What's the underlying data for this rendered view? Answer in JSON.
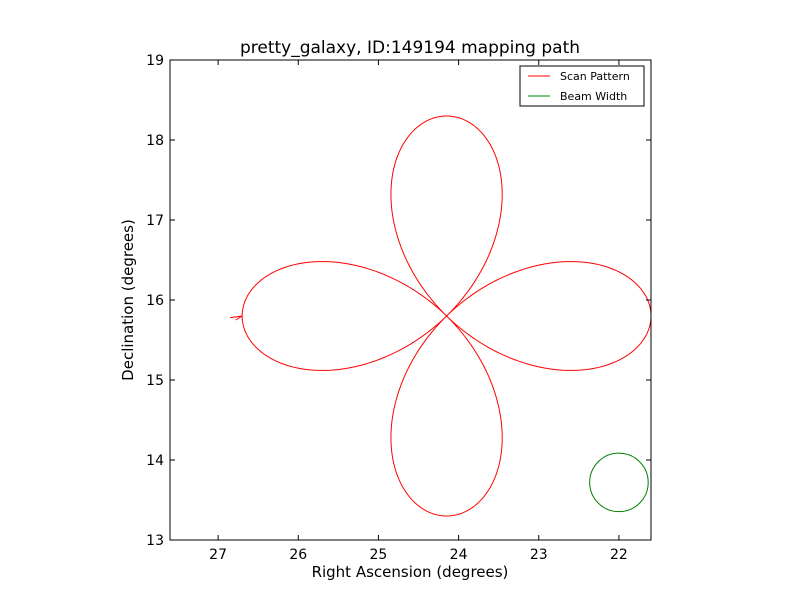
{
  "chart_data": {
    "type": "line",
    "title": "pretty_galaxy, ID:149194 mapping path",
    "xlabel": "Right Ascension (degrees)",
    "ylabel": "Declination (degrees)",
    "xlim": [
      27.6,
      21.6
    ],
    "ylim": [
      13,
      19
    ],
    "x_ticks": [
      27,
      26,
      25,
      24,
      23,
      22
    ],
    "y_ticks": [
      13,
      14,
      15,
      16,
      17,
      18,
      19
    ],
    "x_tick_labels": [
      "27",
      "26",
      "25",
      "24",
      "23",
      "22"
    ],
    "y_tick_labels": [
      "13",
      "14",
      "15",
      "16",
      "17",
      "18",
      "19"
    ],
    "legend": {
      "position": "upper-right",
      "entries": [
        {
          "label": "Scan Pattern",
          "color": "#ff0000"
        },
        {
          "label": "Beam Width",
          "color": "#008000"
        }
      ]
    },
    "series": [
      {
        "name": "Scan Pattern",
        "color": "#ff0000",
        "pattern": "four-lobe rose",
        "center": [
          24.15,
          15.8
        ],
        "lobe_reach_ra": 2.55,
        "lobe_reach_dec": 2.5,
        "start": [
          26.78,
          15.75
        ],
        "end": [
          26.85,
          15.78
        ]
      },
      {
        "name": "Beam Width",
        "color": "#008000",
        "shape": "circle",
        "center": [
          22.0,
          13.72
        ],
        "radius_deg": 0.365
      }
    ]
  }
}
